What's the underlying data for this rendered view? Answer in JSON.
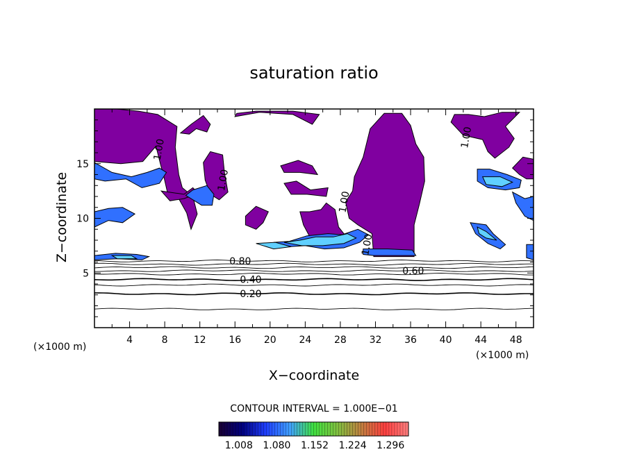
{
  "chart_data": {
    "type": "heatmap",
    "title": "saturation ratio",
    "xlabel": "X−coordinate",
    "ylabel": "Z−coordinate",
    "x_unit": "(×1000 m)",
    "y_unit": "(×1000 m)",
    "xlim": [
      0,
      50
    ],
    "ylim": [
      0,
      20
    ],
    "x_ticks": [
      4,
      8,
      12,
      16,
      20,
      24,
      28,
      32,
      36,
      40,
      44,
      48
    ],
    "y_ticks": [
      5,
      10,
      15
    ],
    "contour_interval_label": "CONTOUR INTERVAL = 1.000E−01",
    "contour_labels": [
      {
        "text": "0.20",
        "x": 17.8,
        "z": 3.1
      },
      {
        "text": "0.40",
        "x": 17.8,
        "z": 4.4
      },
      {
        "text": "0.80",
        "x": 16.6,
        "z": 6.1
      },
      {
        "text": "0.60",
        "x": 36.3,
        "z": 5.2
      },
      {
        "text": "1.00",
        "x": 7.3,
        "z": 16.3
      },
      {
        "text": "1.00",
        "x": 14.6,
        "z": 13.5
      },
      {
        "text": "1.00",
        "x": 28.4,
        "z": 11.5
      },
      {
        "text": "1.00",
        "x": 31.0,
        "z": 7.6
      },
      {
        "text": "1.00",
        "x": 42.3,
        "z": 17.4
      }
    ],
    "colorbar_ticks": [
      "1.008",
      "1.080",
      "1.152",
      "1.224",
      "1.296"
    ],
    "colorbar_range": [
      0.97,
      1.33
    ],
    "colorbar_colors": [
      "#1a0033",
      "#000080",
      "#2040ff",
      "#40a0ff",
      "#40e040",
      "#80c040",
      "#c08040",
      "#ff4040",
      "#ff8080"
    ],
    "fill_colors": {
      "ice_saturated": "#8000a0",
      "supersaturated": "#3070ff",
      "highly_supersaturated": "#60d0ff"
    },
    "contour_lines_z": [
      1.7,
      3.1,
      3.9,
      4.4,
      4.9,
      5.2,
      5.5,
      5.8,
      6.1
    ],
    "saturated_regions": [
      {
        "color": "#8000a0",
        "points": [
          [
            0,
            20
          ],
          [
            0,
            15.2
          ],
          [
            3,
            15.0
          ],
          [
            5.5,
            15.2
          ],
          [
            7,
            16.6
          ],
          [
            7.5,
            15
          ],
          [
            7.9,
            13.8
          ],
          [
            8.3,
            12.4
          ],
          [
            9.6,
            11.8
          ],
          [
            10.5,
            10.5
          ],
          [
            11,
            9
          ],
          [
            11.7,
            10.4
          ],
          [
            11.2,
            12
          ],
          [
            10,
            12.8
          ],
          [
            9.6,
            14
          ],
          [
            9.2,
            16.5
          ],
          [
            9.4,
            18.4
          ],
          [
            7.2,
            19.5
          ],
          [
            5,
            19.8
          ],
          [
            2.5,
            20
          ]
        ]
      },
      {
        "color": "#8000a0",
        "points": [
          [
            31.4,
            18.2
          ],
          [
            33,
            19.6
          ],
          [
            35,
            19.6
          ],
          [
            36,
            18.5
          ],
          [
            36.6,
            16.8
          ],
          [
            37.5,
            15.6
          ],
          [
            37.6,
            13.4
          ],
          [
            37,
            11.3
          ],
          [
            36.4,
            9.4
          ],
          [
            36.4,
            6.5
          ],
          [
            31.8,
            6.5
          ],
          [
            31.6,
            8.6
          ],
          [
            30,
            9.4
          ],
          [
            29,
            10
          ],
          [
            28.6,
            11.5
          ],
          [
            29.4,
            12.5
          ],
          [
            29.6,
            13.8
          ],
          [
            30.6,
            15.6
          ]
        ]
      },
      {
        "color": "#8000a0",
        "points": [
          [
            40.6,
            18.8
          ],
          [
            42,
            17.6
          ],
          [
            44.2,
            17.2
          ],
          [
            44.8,
            16.1
          ],
          [
            45.6,
            15.5
          ],
          [
            47.2,
            16.5
          ],
          [
            47.8,
            17.3
          ],
          [
            46.8,
            18.4
          ],
          [
            48.4,
            19.7
          ],
          [
            46.4,
            19.7
          ],
          [
            44.4,
            19.3
          ],
          [
            42.6,
            19.5
          ],
          [
            41,
            19.5
          ]
        ]
      },
      {
        "color": "#8000a0",
        "points": [
          [
            9.8,
            17.8
          ],
          [
            11,
            18.6
          ],
          [
            12.4,
            19.4
          ],
          [
            13.2,
            18.6
          ],
          [
            12.8,
            17.9
          ],
          [
            11.6,
            18.2
          ],
          [
            10.8,
            17.7
          ]
        ]
      },
      {
        "color": "#8000a0",
        "points": [
          [
            16,
            19.3
          ],
          [
            18.8,
            19.7
          ],
          [
            22.6,
            19.5
          ],
          [
            24.8,
            18.6
          ],
          [
            25.6,
            19.5
          ],
          [
            22.6,
            19.8
          ],
          [
            18.4,
            19.8
          ],
          [
            16.2,
            19.6
          ]
        ]
      },
      {
        "color": "#8000a0",
        "points": [
          [
            12.4,
            15.1
          ],
          [
            13.2,
            16.1
          ],
          [
            14.6,
            15.8
          ],
          [
            14.8,
            14.2
          ],
          [
            15.2,
            12.4
          ],
          [
            14.2,
            11.7
          ],
          [
            13.2,
            12.2
          ],
          [
            12.6,
            13.5
          ]
        ]
      },
      {
        "color": "#8000a0",
        "points": [
          [
            21.2,
            14.8
          ],
          [
            23.2,
            15.3
          ],
          [
            24.8,
            14.8
          ],
          [
            25.4,
            14.0
          ],
          [
            23.4,
            14.2
          ],
          [
            21.6,
            14.2
          ]
        ]
      },
      {
        "color": "#8000a0",
        "points": [
          [
            21.6,
            13.2
          ],
          [
            23,
            13.4
          ],
          [
            24.6,
            12.6
          ],
          [
            26.6,
            12.8
          ],
          [
            26.4,
            12.0
          ],
          [
            24.2,
            12.2
          ],
          [
            22.4,
            12.2
          ]
        ]
      },
      {
        "color": "#8000a0",
        "points": [
          [
            23.4,
            10.6
          ],
          [
            24.5,
            10.6
          ],
          [
            25.8,
            10.8
          ],
          [
            26.4,
            11.4
          ],
          [
            27.4,
            10.8
          ],
          [
            27.8,
            9.2
          ],
          [
            28.4,
            8.6
          ],
          [
            28.2,
            7.8
          ],
          [
            26.4,
            7.6
          ],
          [
            24.6,
            8.2
          ],
          [
            23.8,
            9.4
          ]
        ]
      },
      {
        "color": "#8000a0",
        "points": [
          [
            7.6,
            12.5
          ],
          [
            10.2,
            12.2
          ],
          [
            11.2,
            12.8
          ],
          [
            11.8,
            12.3
          ],
          [
            10.2,
            11.8
          ],
          [
            8.6,
            11.6
          ]
        ]
      },
      {
        "color": "#8000a0",
        "points": [
          [
            17.2,
            10.2
          ],
          [
            18.4,
            11.1
          ],
          [
            19.8,
            10.6
          ],
          [
            19.2,
            9.6
          ],
          [
            18.4,
            9.0
          ],
          [
            17.2,
            9.4
          ]
        ]
      },
      {
        "color": "#8000a0",
        "points": [
          [
            47.6,
            14.6
          ],
          [
            48.8,
            15.6
          ],
          [
            50,
            15.4
          ],
          [
            50,
            13.6
          ],
          [
            49.2,
            13.6
          ],
          [
            48.4,
            14.0
          ]
        ]
      }
    ],
    "supersaturated_regions": [
      {
        "color": "#3070ff",
        "points": [
          [
            0,
            15.1
          ],
          [
            2,
            14.2
          ],
          [
            4.2,
            13.8
          ],
          [
            6,
            14.2
          ],
          [
            7.4,
            14.6
          ],
          [
            8.2,
            14.2
          ],
          [
            7.4,
            13.2
          ],
          [
            5.4,
            12.8
          ],
          [
            3.6,
            13.6
          ],
          [
            1.2,
            13.4
          ],
          [
            0,
            13.6
          ]
        ]
      },
      {
        "color": "#3070ff",
        "points": [
          [
            0,
            10.6
          ],
          [
            1.6,
            10.9
          ],
          [
            3.2,
            11.0
          ],
          [
            4.6,
            10.4
          ],
          [
            3.2,
            9.6
          ],
          [
            1.6,
            9.8
          ],
          [
            0,
            9.2
          ]
        ]
      },
      {
        "color": "#3070ff",
        "points": [
          [
            10.4,
            12.1
          ],
          [
            11.2,
            12.6
          ],
          [
            12.8,
            13.0
          ],
          [
            13.6,
            12.2
          ],
          [
            13.4,
            11.2
          ],
          [
            12.2,
            11.2
          ],
          [
            11.4,
            11.6
          ]
        ]
      },
      {
        "color": "#3070ff",
        "points": [
          [
            20.4,
            7.8
          ],
          [
            22.2,
            7.9
          ],
          [
            24.2,
            8.4
          ],
          [
            26.6,
            8.6
          ],
          [
            28.2,
            8.5
          ],
          [
            30,
            9.0
          ],
          [
            31.2,
            8.5
          ],
          [
            30.2,
            7.8
          ],
          [
            28.4,
            7.3
          ],
          [
            26.2,
            7.2
          ],
          [
            24,
            7.5
          ],
          [
            22.2,
            7.4
          ]
        ]
      },
      {
        "color": "#3070ff",
        "points": [
          [
            0,
            6.6
          ],
          [
            2.4,
            6.8
          ],
          [
            4.8,
            6.7
          ],
          [
            6.2,
            6.5
          ],
          [
            5.4,
            6.2
          ],
          [
            2.6,
            6.3
          ],
          [
            0,
            6.2
          ]
        ]
      },
      {
        "color": "#3070ff",
        "points": [
          [
            42.8,
            9.6
          ],
          [
            44.6,
            9.4
          ],
          [
            45.4,
            8.6
          ],
          [
            46.8,
            7.6
          ],
          [
            46.2,
            7.2
          ],
          [
            44.8,
            7.7
          ],
          [
            43.4,
            8.6
          ]
        ]
      },
      {
        "color": "#3070ff",
        "points": [
          [
            43.6,
            14.5
          ],
          [
            45,
            14.5
          ],
          [
            47,
            14.0
          ],
          [
            48.6,
            13.5
          ],
          [
            48.4,
            12.8
          ],
          [
            46.8,
            12.6
          ],
          [
            44.8,
            12.8
          ],
          [
            43.6,
            13.4
          ]
        ]
      },
      {
        "color": "#3070ff",
        "points": [
          [
            47.6,
            12.4
          ],
          [
            49.0,
            11.8
          ],
          [
            50,
            12.0
          ],
          [
            50,
            9.8
          ],
          [
            49.0,
            10.2
          ],
          [
            48.0,
            11.4
          ]
        ]
      },
      {
        "color": "#3070ff",
        "points": [
          [
            30.6,
            7.2
          ],
          [
            33.4,
            7.2
          ],
          [
            36.2,
            7.1
          ],
          [
            36.6,
            6.6
          ],
          [
            31.8,
            6.6
          ],
          [
            30.6,
            6.7
          ]
        ]
      },
      {
        "color": "#3070ff",
        "points": [
          [
            49.2,
            7.6
          ],
          [
            50,
            7.6
          ],
          [
            50,
            6.2
          ],
          [
            49.2,
            6.4
          ]
        ]
      }
    ],
    "high_supersaturated_regions": [
      {
        "color": "#60d0ff",
        "points": [
          [
            21.6,
            7.8
          ],
          [
            23.4,
            8.0
          ],
          [
            25.2,
            8.3
          ],
          [
            27.2,
            8.3
          ],
          [
            28.8,
            8.6
          ],
          [
            29.8,
            8.2
          ],
          [
            28.4,
            7.7
          ],
          [
            26,
            7.5
          ],
          [
            23.6,
            7.5
          ]
        ]
      },
      {
        "color": "#60d0ff",
        "points": [
          [
            44.2,
            13.8
          ],
          [
            46.2,
            13.8
          ],
          [
            47.6,
            13.3
          ],
          [
            46.4,
            12.9
          ],
          [
            44.6,
            13.1
          ]
        ]
      },
      {
        "color": "#60d0ff",
        "points": [
          [
            18.4,
            7.7
          ],
          [
            20.6,
            7.8
          ],
          [
            22.4,
            7.4
          ],
          [
            20.4,
            7.2
          ]
        ]
      },
      {
        "color": "#60d0ff",
        "points": [
          [
            2.0,
            6.6
          ],
          [
            4.2,
            6.6
          ],
          [
            4.8,
            6.3
          ],
          [
            2.6,
            6.3
          ]
        ]
      },
      {
        "color": "#60d0ff",
        "points": [
          [
            43.6,
            9.2
          ],
          [
            44.6,
            8.8
          ],
          [
            45.8,
            8.0
          ],
          [
            44.6,
            8.2
          ],
          [
            43.8,
            8.6
          ]
        ]
      }
    ]
  }
}
